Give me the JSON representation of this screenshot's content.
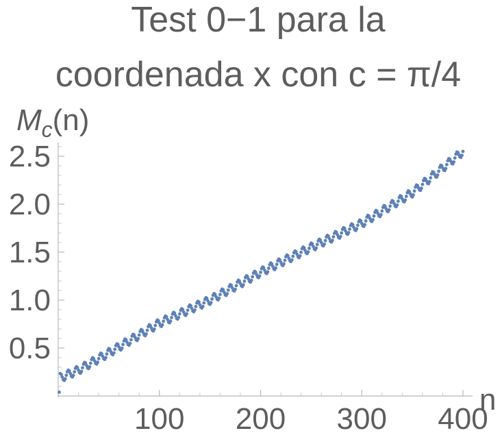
{
  "chart_data": {
    "type": "scatter",
    "title_lines": [
      "Test 0−1 para la",
      "coordenada x con c = π/4"
    ],
    "ylabel_main": "M",
    "ylabel_sub": "c",
    "ylabel_suffix": "(n)",
    "xlabel": "n",
    "xlim": [
      0,
      410
    ],
    "ylim": [
      0,
      2.7
    ],
    "x_ticks": [
      {
        "value": 100,
        "label": "100"
      },
      {
        "value": 200,
        "label": "200"
      },
      {
        "value": 300,
        "label": "300"
      },
      {
        "value": 400,
        "label": "400"
      }
    ],
    "y_ticks": [
      {
        "value": 0.5,
        "label": "0.5"
      },
      {
        "value": 1.0,
        "label": "1.0"
      },
      {
        "value": 1.5,
        "label": "1.5"
      },
      {
        "value": 2.0,
        "label": "2.0"
      },
      {
        "value": 2.5,
        "label": "2.5"
      }
    ],
    "grid": false,
    "point_color": "#5e81b5",
    "series": [
      {
        "n_start": 1,
        "n_end": 400,
        "anchors": [
          [
            0,
            0.18
          ],
          [
            20,
            0.27
          ],
          [
            50,
            0.45
          ],
          [
            100,
            0.76
          ],
          [
            150,
            1.0
          ],
          [
            200,
            1.29
          ],
          [
            250,
            1.55
          ],
          [
            300,
            1.8
          ],
          [
            350,
            2.12
          ],
          [
            400,
            2.55
          ]
        ],
        "oscillation_amplitude": 0.045,
        "oscillation_period": 8
      }
    ]
  }
}
